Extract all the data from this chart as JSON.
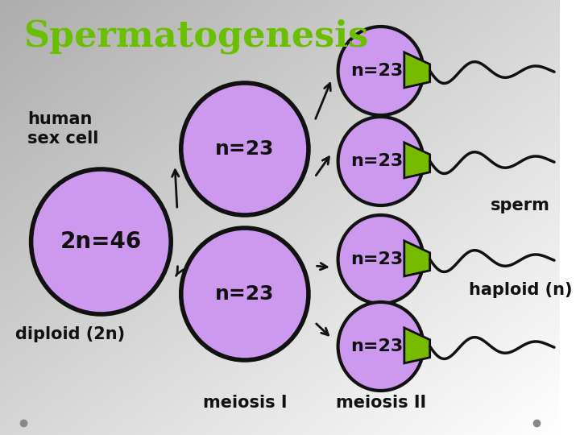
{
  "title": "Spermatogenesis",
  "title_color": "#6abf00",
  "title_fontsize": 32,
  "bg_color_tl": "#b0b0b0",
  "bg_color_br": "#e8e8e8",
  "cell_color": "#cc99ee",
  "cell_edge_color": "#111111",
  "green_cap_color": "#77bb00",
  "text_color": "#111111",
  "label_2n46": "2n=46",
  "label_n23": "n=23",
  "label_human_sex_cell": "human\nsex cell",
  "label_diploid": "diploid (2n)",
  "label_sperm": "sperm",
  "label_haploid": "haploid (n)",
  "label_meiosis1": "meiosis I",
  "label_meiosis2": "meiosis II",
  "large_cell_fontsize": 20,
  "medium_cell_fontsize": 18,
  "sperm_cell_fontsize": 16,
  "annot_fontsize": 15
}
